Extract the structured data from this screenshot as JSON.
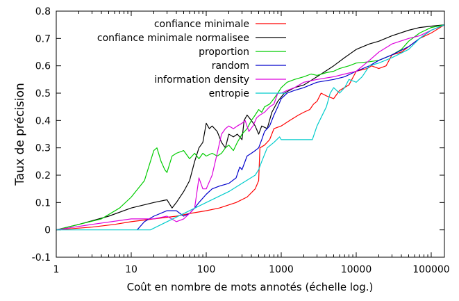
{
  "chart_data": {
    "type": "line",
    "xlabel": "Coût en nombre de mots annotés (échelle log.)",
    "ylabel": "Taux de précision",
    "xscale": "log",
    "xlim": [
      1,
      150000
    ],
    "ylim": [
      -0.1,
      0.8
    ],
    "xticks": [
      1,
      10,
      100,
      1000,
      10000,
      100000
    ],
    "xtick_labels": [
      "1",
      "10",
      "100",
      "1000",
      "10000",
      "100000"
    ],
    "yticks": [
      -0.1,
      0,
      0.1,
      0.2,
      0.3,
      0.4,
      0.5,
      0.6,
      0.7,
      0.8
    ],
    "ytick_labels": [
      "-0.1",
      "0",
      "0.1",
      "0.2",
      "0.3",
      "0.4",
      "0.5",
      "0.6",
      "0.7",
      "0.8"
    ],
    "grid": false,
    "legend_position": "top-right",
    "series": [
      {
        "name": "confiance minimale",
        "color": "#ff0000",
        "points": [
          [
            1,
            0
          ],
          [
            3,
            0.01
          ],
          [
            6,
            0.02
          ],
          [
            10,
            0.03
          ],
          [
            20,
            0.04
          ],
          [
            40,
            0.05
          ],
          [
            60,
            0.06
          ],
          [
            100,
            0.07
          ],
          [
            150,
            0.08
          ],
          [
            250,
            0.1
          ],
          [
            350,
            0.12
          ],
          [
            450,
            0.15
          ],
          [
            500,
            0.18
          ],
          [
            520,
            0.3
          ],
          [
            600,
            0.31
          ],
          [
            700,
            0.33
          ],
          [
            800,
            0.37
          ],
          [
            1000,
            0.38
          ],
          [
            1300,
            0.4
          ],
          [
            1700,
            0.42
          ],
          [
            2000,
            0.43
          ],
          [
            2400,
            0.44
          ],
          [
            2700,
            0.46
          ],
          [
            3000,
            0.47
          ],
          [
            3400,
            0.5
          ],
          [
            4000,
            0.49
          ],
          [
            5000,
            0.48
          ],
          [
            6000,
            0.51
          ],
          [
            8000,
            0.53
          ],
          [
            10000,
            0.58
          ],
          [
            14000,
            0.59
          ],
          [
            16000,
            0.6
          ],
          [
            20000,
            0.59
          ],
          [
            25000,
            0.6
          ],
          [
            30000,
            0.64
          ],
          [
            40000,
            0.65
          ],
          [
            50000,
            0.67
          ],
          [
            70000,
            0.7
          ],
          [
            100000,
            0.72
          ],
          [
            150000,
            0.75
          ]
        ]
      },
      {
        "name": "confiance minimale normalisee",
        "color": "#000000",
        "points": [
          [
            1,
            0
          ],
          [
            2,
            0.02
          ],
          [
            5,
            0.05
          ],
          [
            10,
            0.08
          ],
          [
            20,
            0.1
          ],
          [
            30,
            0.11
          ],
          [
            35,
            0.08
          ],
          [
            40,
            0.1
          ],
          [
            50,
            0.14
          ],
          [
            60,
            0.18
          ],
          [
            70,
            0.25
          ],
          [
            80,
            0.3
          ],
          [
            90,
            0.32
          ],
          [
            100,
            0.39
          ],
          [
            110,
            0.37
          ],
          [
            120,
            0.38
          ],
          [
            140,
            0.36
          ],
          [
            160,
            0.32
          ],
          [
            180,
            0.3
          ],
          [
            200,
            0.35
          ],
          [
            230,
            0.34
          ],
          [
            260,
            0.35
          ],
          [
            300,
            0.33
          ],
          [
            320,
            0.4
          ],
          [
            350,
            0.42
          ],
          [
            400,
            0.4
          ],
          [
            450,
            0.38
          ],
          [
            500,
            0.35
          ],
          [
            550,
            0.38
          ],
          [
            650,
            0.37
          ],
          [
            750,
            0.43
          ],
          [
            900,
            0.47
          ],
          [
            1100,
            0.5
          ],
          [
            1500,
            0.52
          ],
          [
            2000,
            0.53
          ],
          [
            3000,
            0.56
          ],
          [
            5000,
            0.6
          ],
          [
            7000,
            0.63
          ],
          [
            10000,
            0.66
          ],
          [
            15000,
            0.68
          ],
          [
            20000,
            0.69
          ],
          [
            30000,
            0.71
          ],
          [
            50000,
            0.73
          ],
          [
            70000,
            0.74
          ],
          [
            100000,
            0.745
          ],
          [
            150000,
            0.75
          ]
        ]
      },
      {
        "name": "proportion",
        "color": "#00cc00",
        "points": [
          [
            1,
            0
          ],
          [
            2,
            0.02
          ],
          [
            4,
            0.04
          ],
          [
            7,
            0.08
          ],
          [
            10,
            0.12
          ],
          [
            15,
            0.18
          ],
          [
            18,
            0.25
          ],
          [
            20,
            0.29
          ],
          [
            22,
            0.3
          ],
          [
            25,
            0.25
          ],
          [
            28,
            0.22
          ],
          [
            30,
            0.21
          ],
          [
            35,
            0.27
          ],
          [
            40,
            0.28
          ],
          [
            50,
            0.29
          ],
          [
            60,
            0.26
          ],
          [
            70,
            0.28
          ],
          [
            80,
            0.26
          ],
          [
            90,
            0.28
          ],
          [
            100,
            0.27
          ],
          [
            120,
            0.28
          ],
          [
            140,
            0.27
          ],
          [
            160,
            0.28
          ],
          [
            180,
            0.3
          ],
          [
            200,
            0.31
          ],
          [
            230,
            0.29
          ],
          [
            260,
            0.32
          ],
          [
            300,
            0.35
          ],
          [
            350,
            0.37
          ],
          [
            400,
            0.4
          ],
          [
            450,
            0.42
          ],
          [
            500,
            0.44
          ],
          [
            550,
            0.43
          ],
          [
            600,
            0.45
          ],
          [
            700,
            0.46
          ],
          [
            800,
            0.48
          ],
          [
            900,
            0.5
          ],
          [
            1000,
            0.52
          ],
          [
            1200,
            0.54
          ],
          [
            1500,
            0.55
          ],
          [
            2000,
            0.56
          ],
          [
            2500,
            0.57
          ],
          [
            3000,
            0.565
          ],
          [
            4000,
            0.575
          ],
          [
            5000,
            0.58
          ],
          [
            6000,
            0.59
          ],
          [
            8000,
            0.6
          ],
          [
            10000,
            0.61
          ],
          [
            15000,
            0.615
          ],
          [
            20000,
            0.62
          ],
          [
            30000,
            0.64
          ],
          [
            40000,
            0.66
          ],
          [
            50000,
            0.69
          ],
          [
            70000,
            0.72
          ],
          [
            100000,
            0.74
          ],
          [
            150000,
            0.75
          ]
        ]
      },
      {
        "name": "random",
        "color": "#0000cc",
        "points": [
          [
            12,
            0
          ],
          [
            15,
            0.03
          ],
          [
            20,
            0.05
          ],
          [
            30,
            0.07
          ],
          [
            40,
            0.07
          ],
          [
            50,
            0.05
          ],
          [
            60,
            0.06
          ],
          [
            70,
            0.08
          ],
          [
            80,
            0.1
          ],
          [
            100,
            0.13
          ],
          [
            120,
            0.15
          ],
          [
            150,
            0.16
          ],
          [
            200,
            0.17
          ],
          [
            250,
            0.19
          ],
          [
            280,
            0.23
          ],
          [
            300,
            0.22
          ],
          [
            350,
            0.27
          ],
          [
            400,
            0.28
          ],
          [
            450,
            0.29
          ],
          [
            500,
            0.3
          ],
          [
            550,
            0.33
          ],
          [
            600,
            0.36
          ],
          [
            700,
            0.38
          ],
          [
            800,
            0.42
          ],
          [
            900,
            0.45
          ],
          [
            1000,
            0.48
          ],
          [
            1200,
            0.5
          ],
          [
            1500,
            0.51
          ],
          [
            2000,
            0.52
          ],
          [
            3000,
            0.54
          ],
          [
            5000,
            0.55
          ],
          [
            7000,
            0.56
          ],
          [
            10000,
            0.58
          ],
          [
            15000,
            0.6
          ],
          [
            20000,
            0.62
          ],
          [
            30000,
            0.64
          ],
          [
            50000,
            0.67
          ],
          [
            70000,
            0.7
          ],
          [
            100000,
            0.73
          ],
          [
            150000,
            0.75
          ]
        ]
      },
      {
        "name": "information density",
        "color": "#dd00dd",
        "points": [
          [
            1,
            0
          ],
          [
            3,
            0.02
          ],
          [
            10,
            0.04
          ],
          [
            20,
            0.04
          ],
          [
            30,
            0.05
          ],
          [
            40,
            0.03
          ],
          [
            50,
            0.04
          ],
          [
            60,
            0.06
          ],
          [
            70,
            0.08
          ],
          [
            80,
            0.19
          ],
          [
            90,
            0.15
          ],
          [
            100,
            0.15
          ],
          [
            120,
            0.2
          ],
          [
            140,
            0.28
          ],
          [
            160,
            0.35
          ],
          [
            180,
            0.37
          ],
          [
            200,
            0.38
          ],
          [
            230,
            0.37
          ],
          [
            260,
            0.38
          ],
          [
            300,
            0.39
          ],
          [
            330,
            0.4
          ],
          [
            370,
            0.36
          ],
          [
            420,
            0.38
          ],
          [
            470,
            0.41
          ],
          [
            520,
            0.42
          ],
          [
            600,
            0.43
          ],
          [
            700,
            0.45
          ],
          [
            800,
            0.46
          ],
          [
            900,
            0.5
          ],
          [
            1000,
            0.5
          ],
          [
            1200,
            0.51
          ],
          [
            1500,
            0.52
          ],
          [
            2000,
            0.54
          ],
          [
            3000,
            0.55
          ],
          [
            5000,
            0.56
          ],
          [
            7000,
            0.57
          ],
          [
            10000,
            0.58
          ],
          [
            15000,
            0.62
          ],
          [
            20000,
            0.65
          ],
          [
            30000,
            0.68
          ],
          [
            50000,
            0.7
          ],
          [
            70000,
            0.71
          ],
          [
            100000,
            0.73
          ],
          [
            150000,
            0.75
          ]
        ]
      },
      {
        "name": "entropie",
        "color": "#00cccc",
        "points": [
          [
            1,
            0
          ],
          [
            18,
            0
          ],
          [
            30,
            0.03
          ],
          [
            60,
            0.07
          ],
          [
            100,
            0.1
          ],
          [
            200,
            0.14
          ],
          [
            300,
            0.17
          ],
          [
            450,
            0.2
          ],
          [
            500,
            0.22
          ],
          [
            550,
            0.25
          ],
          [
            650,
            0.3
          ],
          [
            800,
            0.32
          ],
          [
            950,
            0.34
          ],
          [
            1000,
            0.33
          ],
          [
            1500,
            0.33
          ],
          [
            2000,
            0.33
          ],
          [
            2600,
            0.33
          ],
          [
            3000,
            0.38
          ],
          [
            4000,
            0.45
          ],
          [
            4500,
            0.5
          ],
          [
            5000,
            0.52
          ],
          [
            6000,
            0.5
          ],
          [
            7000,
            0.52
          ],
          [
            8000,
            0.55
          ],
          [
            10000,
            0.54
          ],
          [
            12000,
            0.56
          ],
          [
            15000,
            0.6
          ],
          [
            20000,
            0.61
          ],
          [
            30000,
            0.63
          ],
          [
            50000,
            0.66
          ],
          [
            70000,
            0.7
          ],
          [
            100000,
            0.73
          ],
          [
            150000,
            0.75
          ]
        ]
      }
    ]
  }
}
